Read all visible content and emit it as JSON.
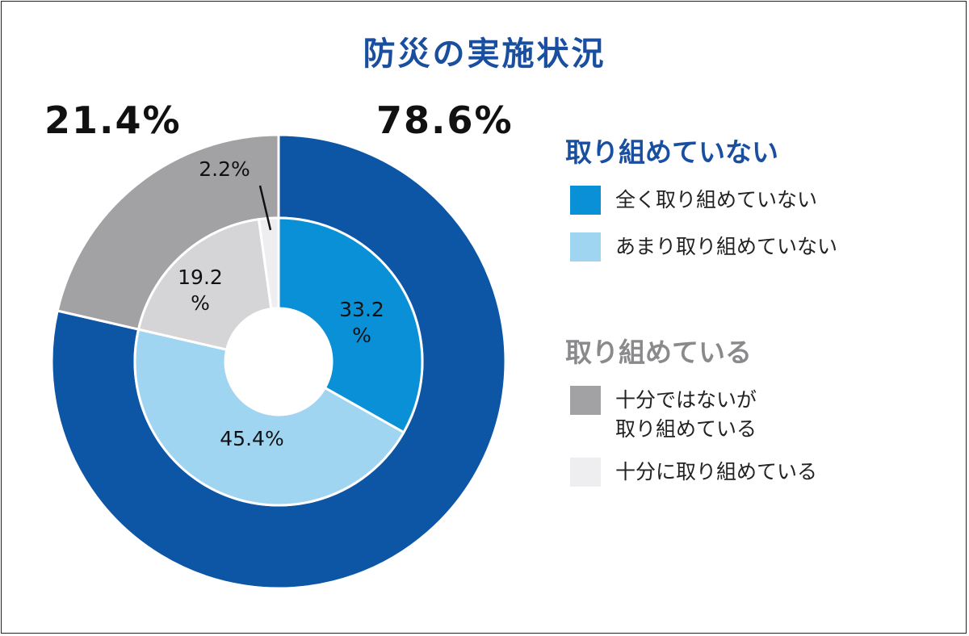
{
  "title": "防災の実施状況",
  "chart_data": {
    "type": "pie",
    "title": "防災の実施状況",
    "outer_ring": [
      {
        "name": "取り組めていない",
        "value": 78.6,
        "label": "78.6%",
        "color": "#0d56a6"
      },
      {
        "name": "取り組めている",
        "value": 21.4,
        "label": "21.4%",
        "color": "#a2a2a5"
      }
    ],
    "inner_ring": [
      {
        "name": "全く取り組めていない",
        "value": 33.2,
        "label": "33.2\n%",
        "color": "#0a90d7"
      },
      {
        "name": "あまり取り組めていない",
        "value": 45.4,
        "label": "45.4%",
        "color": "#a0d5f1"
      },
      {
        "name": "十分ではないが取り組めている",
        "value": 19.2,
        "label": "19.2\n%",
        "color": "#d5d5d7"
      },
      {
        "name": "十分に取り組めている",
        "value": 2.2,
        "label": "2.2%",
        "color": "#eeeef0"
      }
    ],
    "legend": {
      "placement": "right",
      "groups": [
        {
          "heading": "取り組めていない",
          "color": "#1a4fa0",
          "items": [
            {
              "label": "全く取り組めていない",
              "color": "#0a90d7"
            },
            {
              "label": "あまり取り組めていない",
              "color": "#a0d5f1"
            }
          ]
        },
        {
          "heading": "取り組めている",
          "color": "#8a8a8d",
          "items": [
            {
              "label": "十分ではないが\n取り組めている",
              "color": "#a2a2a5"
            },
            {
              "label": "十分に取り組めている",
              "color": "#eeeef0"
            }
          ]
        }
      ]
    }
  }
}
